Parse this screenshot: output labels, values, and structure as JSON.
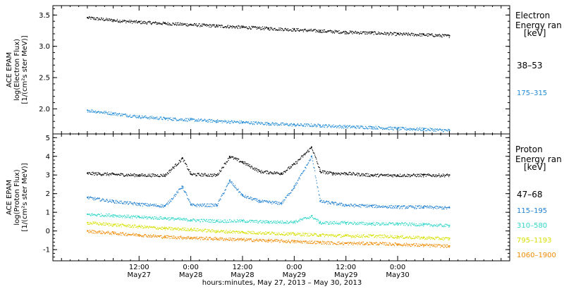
{
  "chart_data": [
    {
      "type": "scatter",
      "instrument": "ACE EPAM",
      "ylabel_line1": "log(Electron Flux)",
      "ylabel_line2": "[1/(cm²s ster MeV)]",
      "legend_title_1": "Electron",
      "legend_title_2": "Energy ran",
      "legend_unit": "[keV]",
      "ylim": [
        1.6,
        3.65
      ],
      "yticks": [
        "2.0",
        "2.5",
        "3.0",
        "3.5"
      ],
      "yticks_values": [
        2.0,
        2.5,
        3.0,
        3.5
      ],
      "series": [
        {
          "name": "38–53",
          "color": "#000000",
          "x": [
            0,
            6,
            12,
            18,
            24,
            30,
            36,
            42,
            48,
            54,
            60,
            66,
            72,
            78,
            84
          ],
          "y": [
            3.46,
            3.42,
            3.39,
            3.37,
            3.35,
            3.33,
            3.31,
            3.29,
            3.27,
            3.25,
            3.23,
            3.22,
            3.2,
            3.19,
            3.17
          ]
        },
        {
          "name": "175–315",
          "color": "#1f8ad6",
          "x": [
            0,
            6,
            12,
            18,
            24,
            30,
            36,
            42,
            48,
            54,
            60,
            66,
            72,
            78,
            84
          ],
          "y": [
            1.98,
            1.93,
            1.88,
            1.85,
            1.83,
            1.81,
            1.79,
            1.77,
            1.75,
            1.74,
            1.72,
            1.71,
            1.69,
            1.68,
            1.66
          ]
        }
      ]
    },
    {
      "type": "scatter",
      "instrument": "ACE EPAM",
      "ylabel_line1": "log(Proton Flux)",
      "ylabel_line2": "[1/(cm²s ster MeV)]",
      "legend_title_1": "Proton",
      "legend_title_2": "Energy ran",
      "legend_unit": "[keV]",
      "ylim": [
        -1.6,
        5.2
      ],
      "yticks": [
        "-1",
        "0",
        "1",
        "2",
        "3",
        "4",
        "5"
      ],
      "yticks_values": [
        -1,
        0,
        1,
        2,
        3,
        4,
        5
      ],
      "series": [
        {
          "name": "47–68",
          "color": "#000000",
          "x": [
            0,
            6,
            12,
            18,
            22,
            24,
            30,
            33,
            36,
            40,
            45,
            48,
            52,
            54,
            57,
            60,
            66,
            72,
            78,
            84
          ],
          "y": [
            3.1,
            3.05,
            3.0,
            3.0,
            3.9,
            3.05,
            3.0,
            4.0,
            3.7,
            3.2,
            3.1,
            3.6,
            4.5,
            3.2,
            3.1,
            3.1,
            3.0,
            3.0,
            3.0,
            3.0
          ]
        },
        {
          "name": "115–195",
          "color": "#1f7fd0",
          "x": [
            0,
            6,
            12,
            18,
            22,
            24,
            30,
            33,
            36,
            40,
            45,
            48,
            52,
            54,
            57,
            60,
            66,
            72,
            78,
            84
          ],
          "y": [
            1.8,
            1.6,
            1.45,
            1.35,
            2.4,
            1.4,
            1.4,
            2.7,
            1.9,
            1.6,
            1.5,
            2.4,
            4.0,
            1.6,
            1.5,
            1.4,
            1.35,
            1.3,
            1.3,
            1.25
          ]
        },
        {
          "name": "310–580",
          "color": "#2fd6c8",
          "x": [
            0,
            6,
            12,
            18,
            24,
            30,
            36,
            42,
            48,
            52,
            54,
            60,
            66,
            72,
            78,
            84
          ],
          "y": [
            0.9,
            0.85,
            0.75,
            0.7,
            0.6,
            0.55,
            0.55,
            0.5,
            0.5,
            0.8,
            0.45,
            0.45,
            0.4,
            0.4,
            0.35,
            0.3
          ]
        },
        {
          "name": "795–1193",
          "color": "#d6e000",
          "x": [
            0,
            6,
            12,
            18,
            24,
            30,
            36,
            42,
            48,
            54,
            60,
            66,
            72,
            78,
            84
          ],
          "y": [
            0.45,
            0.35,
            0.25,
            0.15,
            0.1,
            0.0,
            -0.05,
            -0.1,
            -0.15,
            -0.2,
            -0.25,
            -0.25,
            -0.3,
            -0.35,
            -0.4
          ]
        },
        {
          "name": "1060–1900",
          "color": "#f08a00",
          "x": [
            0,
            6,
            12,
            18,
            24,
            30,
            36,
            42,
            48,
            54,
            60,
            66,
            72,
            78,
            84
          ],
          "y": [
            0.0,
            -0.1,
            -0.2,
            -0.3,
            -0.35,
            -0.4,
            -0.45,
            -0.5,
            -0.55,
            -0.6,
            -0.65,
            -0.65,
            -0.7,
            -0.75,
            -0.8
          ]
        }
      ]
    }
  ],
  "x_axis": {
    "xlabel": "hours:minutes, May 27, 2013 – May 30, 2013",
    "ticks": [
      {
        "t": 12,
        "time": "12:00",
        "date": "May27"
      },
      {
        "t": 24,
        "time": "0:00",
        "date": "May28"
      },
      {
        "t": 36,
        "time": "12:00",
        "date": "May28"
      },
      {
        "t": 48,
        "time": "0:00",
        "date": "May29"
      },
      {
        "t": 60,
        "time": "12:00",
        "date": "May29"
      },
      {
        "t": 72,
        "time": "0:00",
        "date": "May30"
      }
    ]
  }
}
